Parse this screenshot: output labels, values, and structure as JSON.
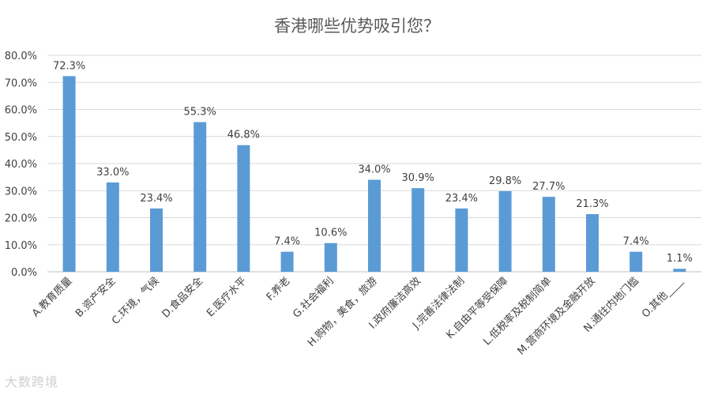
{
  "chart_data": {
    "type": "bar",
    "title": "香港哪些优势吸引您？",
    "xlabel": "",
    "ylabel": "",
    "ylim": [
      0,
      80
    ],
    "yticks": [
      "0.0%",
      "10.0%",
      "20.0%",
      "30.0%",
      "40.0%",
      "50.0%",
      "60.0%",
      "70.0%",
      "80.0%"
    ],
    "grid": true,
    "legend": "none",
    "bar_color": "#5b9bd5",
    "categories": [
      "A.教育质量",
      "B.资产安全",
      "C.环境，气候",
      "D.食品安全",
      "E.医疗水平",
      "F.养老",
      "G.社会福利",
      "H.购物，美食，旅游",
      "I.政府廉洁高效",
      "J.完善法律法制",
      "K.自由平等受保障",
      "L.低税率及税制简单",
      "M.营商环境及金融开放",
      "N.通往内地门槛",
      "O.其他____"
    ],
    "values": [
      72.3,
      33.0,
      23.4,
      55.3,
      46.8,
      7.4,
      10.6,
      34.0,
      30.9,
      23.4,
      29.8,
      27.7,
      21.3,
      7.4,
      1.1
    ],
    "data_labels": [
      "72.3%",
      "33.0%",
      "23.4%",
      "55.3%",
      "46.8%",
      "7.4%",
      "10.6%",
      "34.0%",
      "30.9%",
      "23.4%",
      "29.8%",
      "27.7%",
      "21.3%",
      "7.4%",
      "1.1%"
    ]
  },
  "watermark": "大数跨境"
}
